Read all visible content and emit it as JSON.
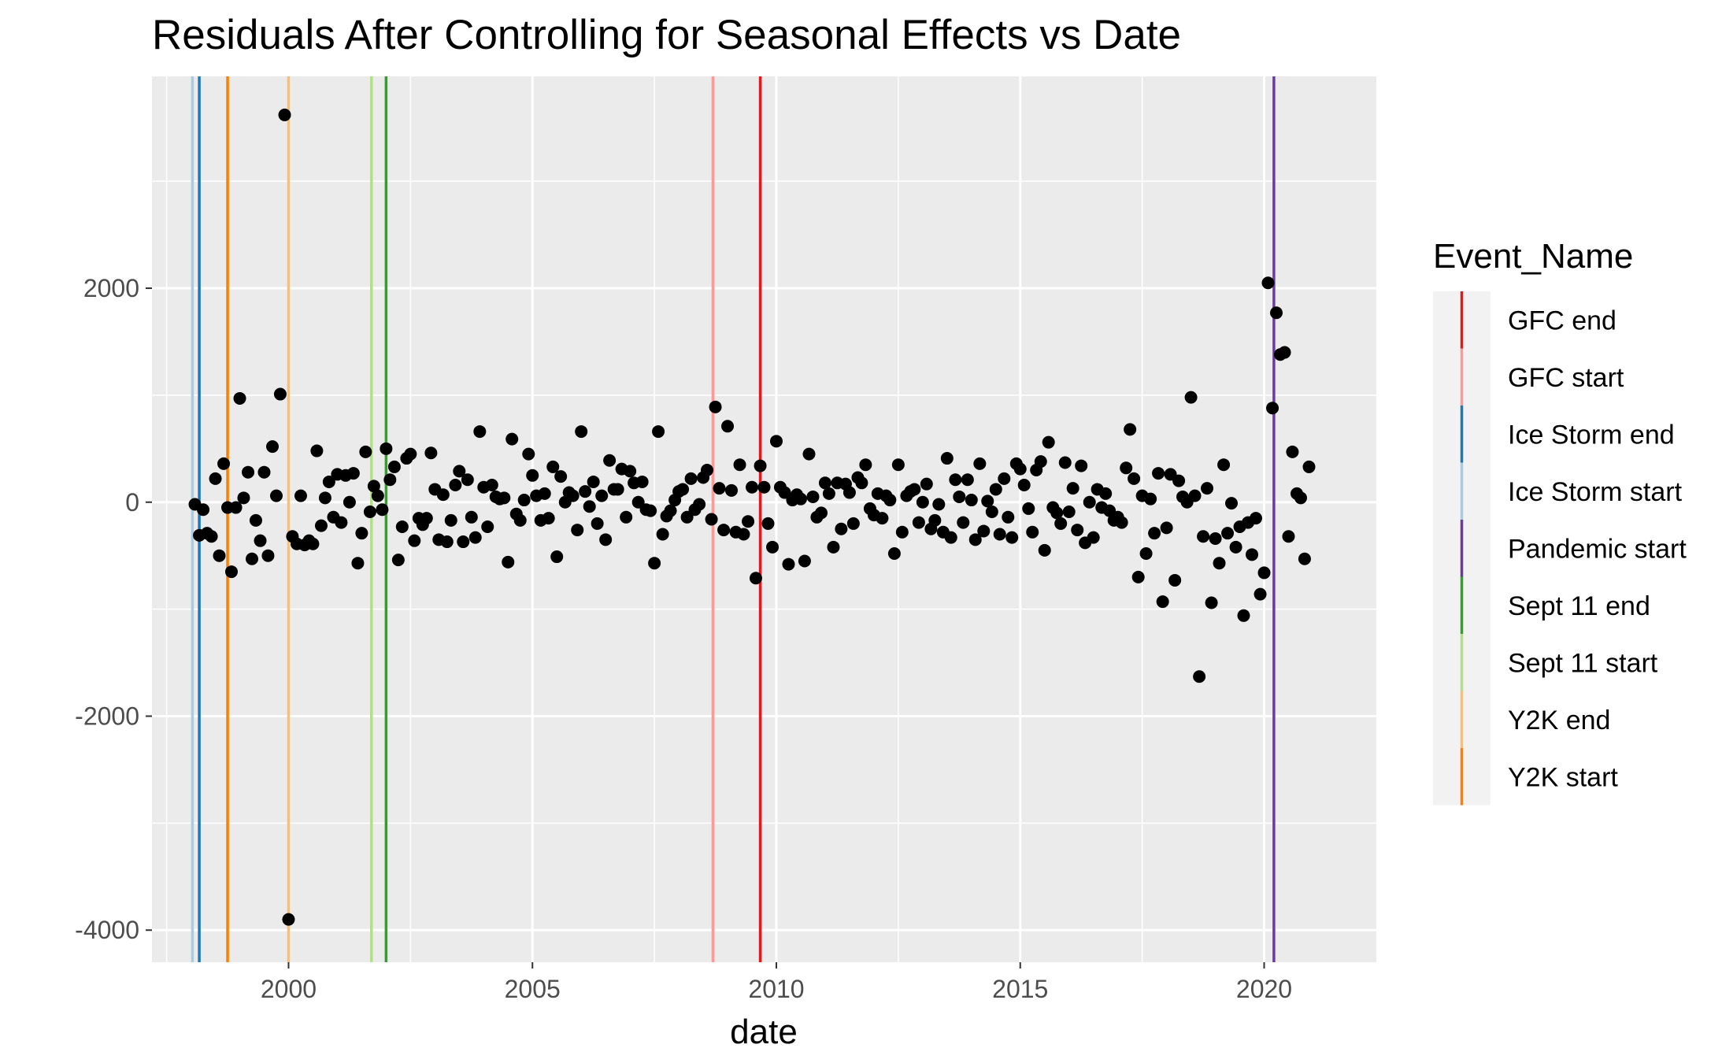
{
  "chart_data": {
    "type": "scatter",
    "title": "Residuals After Controlling for Seasonal Effects vs Date",
    "xlabel": "date",
    "ylabel": "",
    "xlim": [
      1997.2,
      2022.3
    ],
    "ylim": [
      -4300,
      3980
    ],
    "x_ticks": [
      2000,
      2005,
      2010,
      2015,
      2020
    ],
    "x_tick_labels": [
      "2000",
      "2005",
      "2010",
      "2015",
      "2020"
    ],
    "y_ticks": [
      2000,
      0,
      -2000,
      -4000
    ],
    "y_tick_labels": [
      "2000",
      "0",
      "-2000",
      "-4000"
    ],
    "grid": true,
    "legend": {
      "title": "Event_Name",
      "position": "right",
      "entries": [
        {
          "name": "GFC end",
          "color": "#e31a1c"
        },
        {
          "name": "GFC start",
          "color": "#fb9a99"
        },
        {
          "name": "Ice Storm end",
          "color": "#1f78b4"
        },
        {
          "name": "Ice Storm start",
          "color": "#a6cee3"
        },
        {
          "name": "Pandemic start",
          "color": "#6a3d9a"
        },
        {
          "name": "Sept 11 end",
          "color": "#33a02c"
        },
        {
          "name": "Sept 11 start",
          "color": "#b2df8a"
        },
        {
          "name": "Y2K end",
          "color": "#fdbf6f"
        },
        {
          "name": "Y2K start",
          "color": "#ff7f00"
        }
      ]
    },
    "vlines": [
      {
        "event": "Ice Storm start",
        "date": 1998.03,
        "color": "#a6cee3"
      },
      {
        "event": "Ice Storm end",
        "date": 1998.17,
        "color": "#1f78b4"
      },
      {
        "event": "Y2K start",
        "date": 1998.75,
        "color": "#ff7f00"
      },
      {
        "event": "Y2K end",
        "date": 2000.0,
        "color": "#fdbf6f"
      },
      {
        "event": "Sept 11 start",
        "date": 2001.7,
        "color": "#b2df8a"
      },
      {
        "event": "Sept 11 end",
        "date": 2002.0,
        "color": "#33a02c"
      },
      {
        "event": "GFC start",
        "date": 2008.7,
        "color": "#fb9a99"
      },
      {
        "event": "GFC end",
        "date": 2009.67,
        "color": "#e31a1c"
      },
      {
        "event": "Pandemic start",
        "date": 2020.2,
        "color": "#6a3d9a"
      }
    ],
    "point_color": "#000000",
    "points": [
      [
        1998.08,
        -20
      ],
      [
        1998.17,
        -310
      ],
      [
        1998.25,
        -70
      ],
      [
        1998.33,
        -290
      ],
      [
        1998.42,
        -320
      ],
      [
        1998.5,
        220
      ],
      [
        1998.58,
        -500
      ],
      [
        1998.67,
        360
      ],
      [
        1998.75,
        -50
      ],
      [
        1998.83,
        -650
      ],
      [
        1998.92,
        -50
      ],
      [
        1999.0,
        970
      ],
      [
        1999.08,
        40
      ],
      [
        1999.17,
        280
      ],
      [
        1999.25,
        -530
      ],
      [
        1999.33,
        -170
      ],
      [
        1999.42,
        -360
      ],
      [
        1999.5,
        280
      ],
      [
        1999.58,
        -500
      ],
      [
        1999.67,
        520
      ],
      [
        1999.75,
        60
      ],
      [
        1999.83,
        1010
      ],
      [
        1999.92,
        3620
      ],
      [
        2000.0,
        -3900
      ],
      [
        2000.08,
        -320
      ],
      [
        2000.17,
        -390
      ],
      [
        2000.25,
        60
      ],
      [
        2000.33,
        -400
      ],
      [
        2000.42,
        -360
      ],
      [
        2000.5,
        -390
      ],
      [
        2000.58,
        480
      ],
      [
        2000.67,
        -220
      ],
      [
        2000.75,
        40
      ],
      [
        2000.83,
        190
      ],
      [
        2000.92,
        -140
      ],
      [
        2001.0,
        260
      ],
      [
        2001.08,
        -190
      ],
      [
        2001.17,
        250
      ],
      [
        2001.25,
        0
      ],
      [
        2001.33,
        270
      ],
      [
        2001.42,
        -570
      ],
      [
        2001.5,
        -290
      ],
      [
        2001.58,
        470
      ],
      [
        2001.67,
        -90
      ],
      [
        2001.75,
        150
      ],
      [
        2001.83,
        60
      ],
      [
        2001.92,
        -70
      ],
      [
        2002.0,
        500
      ],
      [
        2002.08,
        210
      ],
      [
        2002.17,
        330
      ],
      [
        2002.25,
        -540
      ],
      [
        2002.33,
        -230
      ],
      [
        2002.42,
        410
      ],
      [
        2002.5,
        450
      ],
      [
        2002.58,
        -360
      ],
      [
        2002.67,
        -150
      ],
      [
        2002.75,
        -210
      ],
      [
        2002.83,
        -150
      ],
      [
        2002.92,
        460
      ],
      [
        2003.0,
        120
      ],
      [
        2003.08,
        -350
      ],
      [
        2003.17,
        70
      ],
      [
        2003.25,
        -370
      ],
      [
        2003.33,
        -170
      ],
      [
        2003.42,
        160
      ],
      [
        2003.5,
        290
      ],
      [
        2003.58,
        -370
      ],
      [
        2003.67,
        210
      ],
      [
        2003.75,
        -140
      ],
      [
        2003.83,
        -330
      ],
      [
        2003.92,
        660
      ],
      [
        2004.0,
        140
      ],
      [
        2004.08,
        -230
      ],
      [
        2004.17,
        160
      ],
      [
        2004.25,
        50
      ],
      [
        2004.33,
        30
      ],
      [
        2004.42,
        40
      ],
      [
        2004.5,
        -560
      ],
      [
        2004.58,
        590
      ],
      [
        2004.67,
        -110
      ],
      [
        2004.75,
        -170
      ],
      [
        2004.83,
        20
      ],
      [
        2004.92,
        450
      ],
      [
        2005.0,
        250
      ],
      [
        2005.08,
        60
      ],
      [
        2005.17,
        -170
      ],
      [
        2005.25,
        80
      ],
      [
        2005.33,
        -150
      ],
      [
        2005.42,
        330
      ],
      [
        2005.5,
        -510
      ],
      [
        2005.58,
        240
      ],
      [
        2005.67,
        0
      ],
      [
        2005.75,
        90
      ],
      [
        2005.83,
        60
      ],
      [
        2005.92,
        -260
      ],
      [
        2006.0,
        660
      ],
      [
        2006.08,
        100
      ],
      [
        2006.17,
        -40
      ],
      [
        2006.25,
        190
      ],
      [
        2006.33,
        -200
      ],
      [
        2006.42,
        60
      ],
      [
        2006.5,
        -350
      ],
      [
        2006.58,
        390
      ],
      [
        2006.67,
        120
      ],
      [
        2006.75,
        120
      ],
      [
        2006.83,
        310
      ],
      [
        2006.92,
        -140
      ],
      [
        2007.0,
        290
      ],
      [
        2007.08,
        180
      ],
      [
        2007.17,
        0
      ],
      [
        2007.25,
        190
      ],
      [
        2007.33,
        -70
      ],
      [
        2007.42,
        -80
      ],
      [
        2007.5,
        -570
      ],
      [
        2007.58,
        660
      ],
      [
        2007.67,
        -300
      ],
      [
        2007.75,
        -130
      ],
      [
        2007.83,
        -80
      ],
      [
        2007.92,
        20
      ],
      [
        2008.0,
        100
      ],
      [
        2008.08,
        120
      ],
      [
        2008.17,
        -140
      ],
      [
        2008.25,
        220
      ],
      [
        2008.33,
        -70
      ],
      [
        2008.42,
        -20
      ],
      [
        2008.5,
        230
      ],
      [
        2008.58,
        300
      ],
      [
        2008.67,
        -160
      ],
      [
        2008.75,
        890
      ],
      [
        2008.83,
        130
      ],
      [
        2008.92,
        -260
      ],
      [
        2009.0,
        710
      ],
      [
        2009.08,
        110
      ],
      [
        2009.17,
        -280
      ],
      [
        2009.25,
        350
      ],
      [
        2009.33,
        -300
      ],
      [
        2009.42,
        -180
      ],
      [
        2009.5,
        140
      ],
      [
        2009.58,
        -710
      ],
      [
        2009.67,
        340
      ],
      [
        2009.75,
        140
      ],
      [
        2009.83,
        -200
      ],
      [
        2009.92,
        -420
      ],
      [
        2010.0,
        570
      ],
      [
        2010.08,
        140
      ],
      [
        2010.17,
        90
      ],
      [
        2010.25,
        -580
      ],
      [
        2010.33,
        20
      ],
      [
        2010.42,
        70
      ],
      [
        2010.5,
        30
      ],
      [
        2010.58,
        -550
      ],
      [
        2010.67,
        450
      ],
      [
        2010.75,
        50
      ],
      [
        2010.83,
        -140
      ],
      [
        2010.92,
        -100
      ],
      [
        2011.0,
        180
      ],
      [
        2011.08,
        80
      ],
      [
        2011.17,
        -420
      ],
      [
        2011.25,
        180
      ],
      [
        2011.33,
        -250
      ],
      [
        2011.42,
        170
      ],
      [
        2011.5,
        90
      ],
      [
        2011.58,
        -200
      ],
      [
        2011.67,
        230
      ],
      [
        2011.75,
        180
      ],
      [
        2011.83,
        350
      ],
      [
        2011.92,
        -60
      ],
      [
        2012.0,
        -120
      ],
      [
        2012.08,
        80
      ],
      [
        2012.17,
        -150
      ],
      [
        2012.25,
        60
      ],
      [
        2012.33,
        20
      ],
      [
        2012.42,
        -480
      ],
      [
        2012.5,
        350
      ],
      [
        2012.58,
        -280
      ],
      [
        2012.67,
        60
      ],
      [
        2012.75,
        100
      ],
      [
        2012.83,
        120
      ],
      [
        2012.92,
        -190
      ],
      [
        2013.0,
        0
      ],
      [
        2013.08,
        170
      ],
      [
        2013.17,
        -250
      ],
      [
        2013.25,
        -170
      ],
      [
        2013.33,
        -20
      ],
      [
        2013.42,
        -280
      ],
      [
        2013.5,
        410
      ],
      [
        2013.58,
        -330
      ],
      [
        2013.67,
        210
      ],
      [
        2013.75,
        50
      ],
      [
        2013.83,
        -190
      ],
      [
        2013.92,
        210
      ],
      [
        2014.0,
        20
      ],
      [
        2014.08,
        -350
      ],
      [
        2014.17,
        360
      ],
      [
        2014.25,
        -270
      ],
      [
        2014.33,
        10
      ],
      [
        2014.42,
        -90
      ],
      [
        2014.5,
        120
      ],
      [
        2014.58,
        -300
      ],
      [
        2014.67,
        220
      ],
      [
        2014.75,
        -140
      ],
      [
        2014.83,
        -330
      ],
      [
        2014.92,
        360
      ],
      [
        2015.0,
        310
      ],
      [
        2015.08,
        160
      ],
      [
        2015.17,
        -60
      ],
      [
        2015.25,
        -280
      ],
      [
        2015.33,
        300
      ],
      [
        2015.42,
        380
      ],
      [
        2015.5,
        -450
      ],
      [
        2015.58,
        560
      ],
      [
        2015.67,
        -50
      ],
      [
        2015.75,
        -100
      ],
      [
        2015.83,
        -200
      ],
      [
        2015.92,
        370
      ],
      [
        2016.0,
        -90
      ],
      [
        2016.08,
        130
      ],
      [
        2016.17,
        -260
      ],
      [
        2016.25,
        340
      ],
      [
        2016.33,
        -380
      ],
      [
        2016.42,
        0
      ],
      [
        2016.5,
        -330
      ],
      [
        2016.58,
        120
      ],
      [
        2016.67,
        -50
      ],
      [
        2016.75,
        80
      ],
      [
        2016.83,
        -80
      ],
      [
        2016.92,
        -170
      ],
      [
        2017.0,
        -140
      ],
      [
        2017.08,
        -190
      ],
      [
        2017.17,
        320
      ],
      [
        2017.25,
        680
      ],
      [
        2017.33,
        220
      ],
      [
        2017.42,
        -700
      ],
      [
        2017.5,
        60
      ],
      [
        2017.58,
        -480
      ],
      [
        2017.67,
        30
      ],
      [
        2017.75,
        -290
      ],
      [
        2017.83,
        270
      ],
      [
        2017.92,
        -930
      ],
      [
        2018.0,
        -240
      ],
      [
        2018.08,
        260
      ],
      [
        2018.17,
        -730
      ],
      [
        2018.25,
        200
      ],
      [
        2018.33,
        50
      ],
      [
        2018.42,
        0
      ],
      [
        2018.5,
        980
      ],
      [
        2018.58,
        60
      ],
      [
        2018.67,
        -1630
      ],
      [
        2018.75,
        -320
      ],
      [
        2018.83,
        130
      ],
      [
        2018.92,
        -940
      ],
      [
        2019.0,
        -340
      ],
      [
        2019.08,
        -570
      ],
      [
        2019.17,
        350
      ],
      [
        2019.25,
        -290
      ],
      [
        2019.33,
        -10
      ],
      [
        2019.42,
        -420
      ],
      [
        2019.5,
        -230
      ],
      [
        2019.58,
        -1060
      ],
      [
        2019.67,
        -190
      ],
      [
        2019.75,
        -490
      ],
      [
        2019.83,
        -150
      ],
      [
        2019.92,
        -860
      ],
      [
        2020.0,
        -660
      ],
      [
        2020.08,
        2050
      ],
      [
        2020.17,
        880
      ],
      [
        2020.25,
        1770
      ],
      [
        2020.33,
        1380
      ],
      [
        2020.42,
        1400
      ],
      [
        2020.5,
        -320
      ],
      [
        2020.58,
        470
      ],
      [
        2020.67,
        80
      ],
      [
        2020.75,
        40
      ],
      [
        2020.83,
        -530
      ],
      [
        2020.92,
        330
      ]
    ]
  }
}
